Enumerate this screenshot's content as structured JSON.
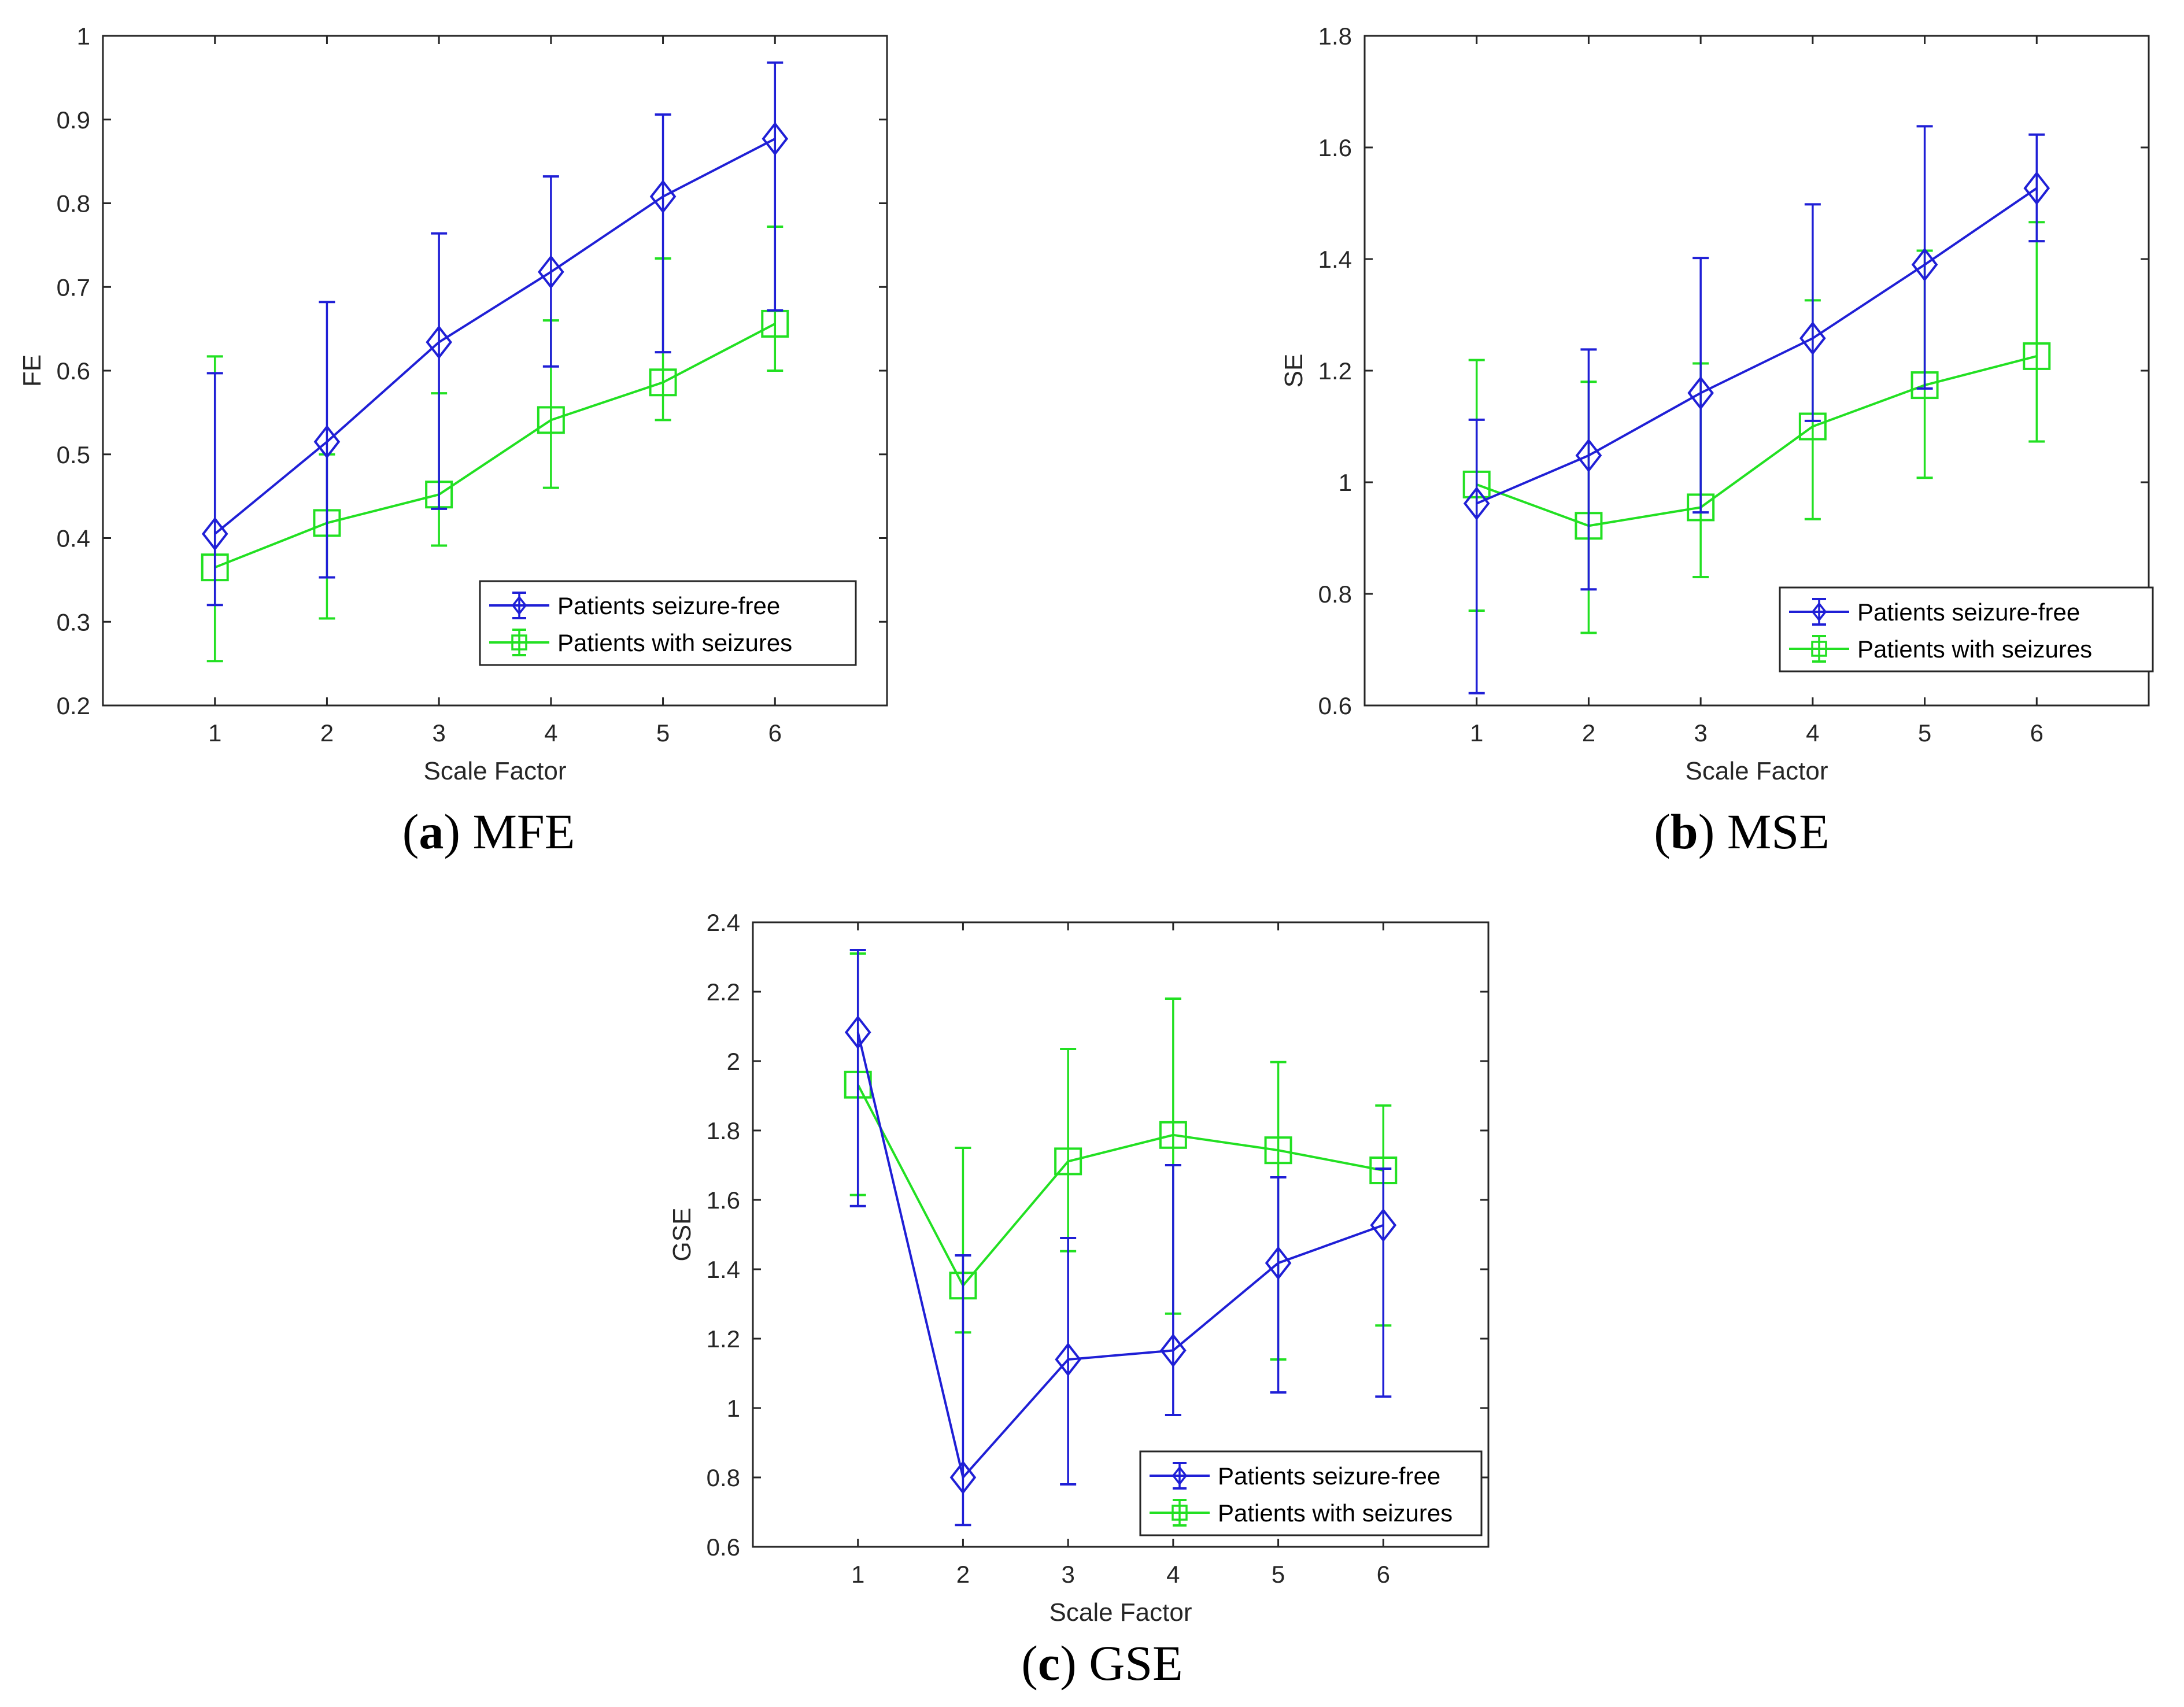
{
  "figure": {
    "captions": [
      {
        "paren_open": "(",
        "letter": "a",
        "paren_close": ")",
        "text": " MFE"
      },
      {
        "paren_open": "(",
        "letter": "b",
        "paren_close": ")",
        "text": " MSE"
      },
      {
        "paren_open": "(",
        "letter": "c",
        "paren_close": ")",
        "text": " GSE"
      }
    ]
  },
  "colors": {
    "seizure_free": "#1f1fd6",
    "with_seizures": "#22e022",
    "axis": "#262626"
  },
  "chart_data": [
    {
      "type": "line",
      "id": "mfe",
      "title": "",
      "xlabel": "Scale Factor",
      "ylabel": "FE",
      "xlim": [
        0,
        7
      ],
      "ylim": [
        0.2,
        1.0
      ],
      "xticks": [
        1,
        2,
        3,
        4,
        5,
        6
      ],
      "xtick_labels": [
        "1",
        "2",
        "3",
        "4",
        "5",
        "6"
      ],
      "yticks": [
        0.2,
        0.3,
        0.4,
        0.5,
        0.6,
        0.7,
        0.8,
        0.9,
        1.0
      ],
      "ytick_labels": [
        "0.2",
        "0.3",
        "0.4",
        "0.5",
        "0.6",
        "0.7",
        "0.8",
        "0.9",
        "1"
      ],
      "legend_position": "lower-right",
      "grid": false,
      "x": [
        1,
        2,
        3,
        4,
        5,
        6
      ],
      "series": [
        {
          "name": "Patients seizure-free",
          "marker": "diamond",
          "values": [
            0.405,
            0.515,
            0.634,
            0.718,
            0.808,
            0.877
          ],
          "lower": [
            0.32,
            0.353,
            0.435,
            0.605,
            0.622,
            0.672
          ],
          "upper": [
            0.597,
            0.682,
            0.764,
            0.832,
            0.906,
            0.968
          ]
        },
        {
          "name": "Patients with seizures",
          "marker": "square",
          "values": [
            0.365,
            0.418,
            0.452,
            0.541,
            0.586,
            0.656
          ],
          "lower": [
            0.253,
            0.304,
            0.391,
            0.46,
            0.541,
            0.6
          ],
          "upper": [
            0.617,
            0.5,
            0.573,
            0.66,
            0.734,
            0.772
          ]
        }
      ]
    },
    {
      "type": "line",
      "id": "mse",
      "title": "",
      "xlabel": "Scale Factor",
      "ylabel": "SE",
      "xlim": [
        0,
        7
      ],
      "ylim": [
        0.6,
        1.8
      ],
      "xticks": [
        1,
        2,
        3,
        4,
        5,
        6
      ],
      "xtick_labels": [
        "1",
        "2",
        "3",
        "4",
        "5",
        "6"
      ],
      "yticks": [
        0.6,
        0.8,
        1.0,
        1.2,
        1.4,
        1.6,
        1.8
      ],
      "ytick_labels": [
        "0.6",
        "0.8",
        "1",
        "1.2",
        "1.4",
        "1.6",
        "1.8"
      ],
      "legend_position": "lower-right",
      "grid": false,
      "x": [
        1,
        2,
        3,
        4,
        5,
        6
      ],
      "series": [
        {
          "name": "Patients seizure-free",
          "marker": "diamond",
          "values": [
            0.962,
            1.048,
            1.16,
            1.258,
            1.39,
            1.527
          ],
          "lower": [
            0.622,
            0.808,
            0.946,
            1.11,
            1.168,
            1.432
          ],
          "upper": [
            1.112,
            1.238,
            1.402,
            1.498,
            1.638,
            1.623
          ]
        },
        {
          "name": "Patients with seizures",
          "marker": "square",
          "values": [
            0.996,
            0.922,
            0.955,
            1.1,
            1.174,
            1.226
          ],
          "lower": [
            0.77,
            0.73,
            0.83,
            0.934,
            1.008,
            1.073
          ],
          "upper": [
            1.219,
            1.18,
            1.213,
            1.326,
            1.415,
            1.466
          ]
        }
      ]
    },
    {
      "type": "line",
      "id": "gse",
      "title": "",
      "xlabel": "Scale Factor",
      "ylabel": "GSE",
      "xlim": [
        0,
        7
      ],
      "ylim": [
        0.6,
        2.4
      ],
      "xticks": [
        1,
        2,
        3,
        4,
        5,
        6
      ],
      "xtick_labels": [
        "1",
        "2",
        "3",
        "4",
        "5",
        "6"
      ],
      "yticks": [
        0.6,
        0.8,
        1.0,
        1.2,
        1.4,
        1.6,
        1.8,
        2.0,
        2.2,
        2.4
      ],
      "ytick_labels": [
        "0.6",
        "0.8",
        "1",
        "1.2",
        "1.4",
        "1.6",
        "1.8",
        "2",
        "2.2",
        "2.4"
      ],
      "legend_position": "lower-right",
      "grid": false,
      "x": [
        1,
        2,
        3,
        4,
        5,
        6
      ],
      "series": [
        {
          "name": "Patients seizure-free",
          "marker": "diamond",
          "values": [
            2.083,
            0.8,
            1.14,
            1.166,
            1.418,
            1.527
          ],
          "lower": [
            1.582,
            0.663,
            0.78,
            0.98,
            1.045,
            1.033
          ],
          "upper": [
            2.32,
            1.44,
            1.49,
            1.7,
            1.665,
            1.69
          ]
        },
        {
          "name": "Patients with seizures",
          "marker": "square",
          "values": [
            1.932,
            1.353,
            1.711,
            1.787,
            1.743,
            1.685
          ],
          "lower": [
            1.614,
            1.218,
            1.452,
            1.272,
            1.14,
            1.238
          ],
          "upper": [
            2.31,
            1.75,
            2.035,
            2.18,
            1.997,
            1.872
          ]
        }
      ]
    }
  ]
}
